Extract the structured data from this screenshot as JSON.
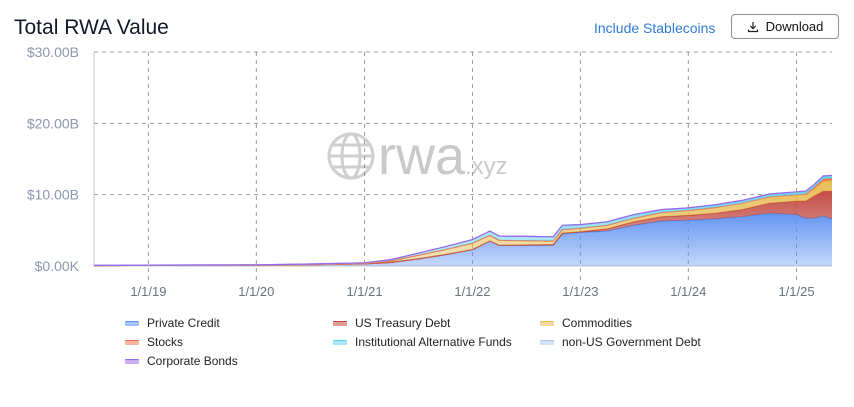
{
  "header": {
    "title": "Total RWA Value",
    "stablecoins_label": "Include Stablecoins",
    "download_label": "Download",
    "download_icon": "download-icon"
  },
  "watermark": {
    "brand": "rwa",
    "suffix": ".xyz",
    "icon": "globe-icon"
  },
  "colors": {
    "private_credit": "#5b8ff0",
    "us_treasury_debt": "#c0453d",
    "commodities": "#e6b84a",
    "stocks": "#f2734b",
    "institutional_alternative_funds": "#5fd0f2",
    "non_us_government_debt": "#a9c7f2",
    "corporate_bonds": "#9a66e8",
    "axis_text": "#8a98ad",
    "grid": "#9b9b9b"
  },
  "chart_data": {
    "type": "area",
    "stacked": true,
    "x_axis": {
      "type": "date",
      "range": [
        "2018-07-01",
        "2025-05-01"
      ],
      "ticks": [
        "1/1/19",
        "1/1/20",
        "1/1/21",
        "1/1/22",
        "1/1/23",
        "1/1/24",
        "1/1/25"
      ]
    },
    "y_axis": {
      "range": [
        0,
        30
      ],
      "unit": "B",
      "ticks": [
        "$0.00K",
        "$10.00B",
        "$20.00B",
        "$30.00B"
      ]
    },
    "grid": true,
    "legend_position": "bottom",
    "x": [
      "2018-07-01",
      "2019-01-01",
      "2020-01-01",
      "2020-07-01",
      "2021-01-01",
      "2021-04-01",
      "2021-07-01",
      "2021-10-01",
      "2022-01-01",
      "2022-03-01",
      "2022-04-01",
      "2022-07-01",
      "2022-10-01",
      "2022-11-01",
      "2023-01-01",
      "2023-04-01",
      "2023-07-01",
      "2023-10-01",
      "2024-01-01",
      "2024-04-01",
      "2024-07-01",
      "2024-10-01",
      "2025-01-01",
      "2025-02-01",
      "2025-03-01",
      "2025-04-01",
      "2025-05-01"
    ],
    "series": [
      {
        "name": "Private Credit",
        "color_key": "private_credit",
        "values": [
          0.05,
          0.1,
          0.1,
          0.2,
          0.3,
          0.5,
          1.0,
          1.6,
          2.3,
          3.5,
          2.9,
          2.9,
          2.9,
          4.5,
          4.7,
          4.9,
          5.7,
          6.3,
          6.4,
          6.6,
          6.9,
          7.4,
          7.2,
          6.7,
          6.7,
          7.0,
          6.6
        ]
      },
      {
        "name": "US Treasury Debt",
        "color_key": "us_treasury_debt",
        "values": [
          0,
          0,
          0,
          0,
          0,
          0,
          0,
          0,
          0,
          0,
          0,
          0.05,
          0.1,
          0.1,
          0.1,
          0.3,
          0.5,
          0.6,
          0.7,
          0.8,
          1.0,
          1.4,
          1.9,
          2.4,
          3.1,
          3.5,
          3.9
        ]
      },
      {
        "name": "Commodities",
        "color_key": "commodities",
        "values": [
          0,
          0,
          0,
          0,
          0.05,
          0.2,
          0.5,
          0.7,
          0.9,
          0.8,
          0.7,
          0.6,
          0.5,
          0.5,
          0.5,
          0.5,
          0.5,
          0.6,
          0.7,
          0.8,
          0.9,
          0.9,
          0.9,
          0.9,
          1.0,
          1.4,
          1.5
        ]
      },
      {
        "name": "Stocks",
        "color_key": "stocks",
        "values": [
          0,
          0,
          0,
          0,
          0,
          0,
          0,
          0,
          0,
          0,
          0,
          0,
          0,
          0,
          0,
          0,
          0,
          0,
          0,
          0,
          0,
          0,
          0,
          0.1,
          0.2,
          0.3,
          0.3
        ]
      },
      {
        "name": "Institutional Alternative Funds",
        "color_key": "institutional_alternative_funds",
        "values": [
          0.03,
          0.03,
          0.05,
          0.08,
          0.1,
          0.2,
          0.3,
          0.4,
          0.5,
          0.6,
          0.6,
          0.6,
          0.6,
          0.6,
          0.5,
          0.5,
          0.5,
          0.4,
          0.3,
          0.3,
          0.3,
          0.3,
          0.3,
          0.3,
          0.3,
          0.3,
          0.3
        ]
      },
      {
        "name": "non-US Government Debt",
        "color_key": "non_us_government_debt",
        "values": [
          0,
          0,
          0,
          0,
          0,
          0,
          0,
          0,
          0,
          0,
          0,
          0,
          0,
          0,
          0,
          0,
          0,
          0,
          0.05,
          0.1,
          0.1,
          0.1,
          0.1,
          0.1,
          0.1,
          0.1,
          0.1
        ]
      },
      {
        "name": "Corporate Bonds",
        "color_key": "corporate_bonds",
        "values": [
          0,
          0,
          0,
          0,
          0,
          0,
          0,
          0,
          0,
          0,
          0,
          0,
          0,
          0,
          0,
          0,
          0,
          0,
          0,
          0,
          0,
          0,
          0,
          0,
          0,
          0.02,
          0.02
        ]
      }
    ]
  }
}
